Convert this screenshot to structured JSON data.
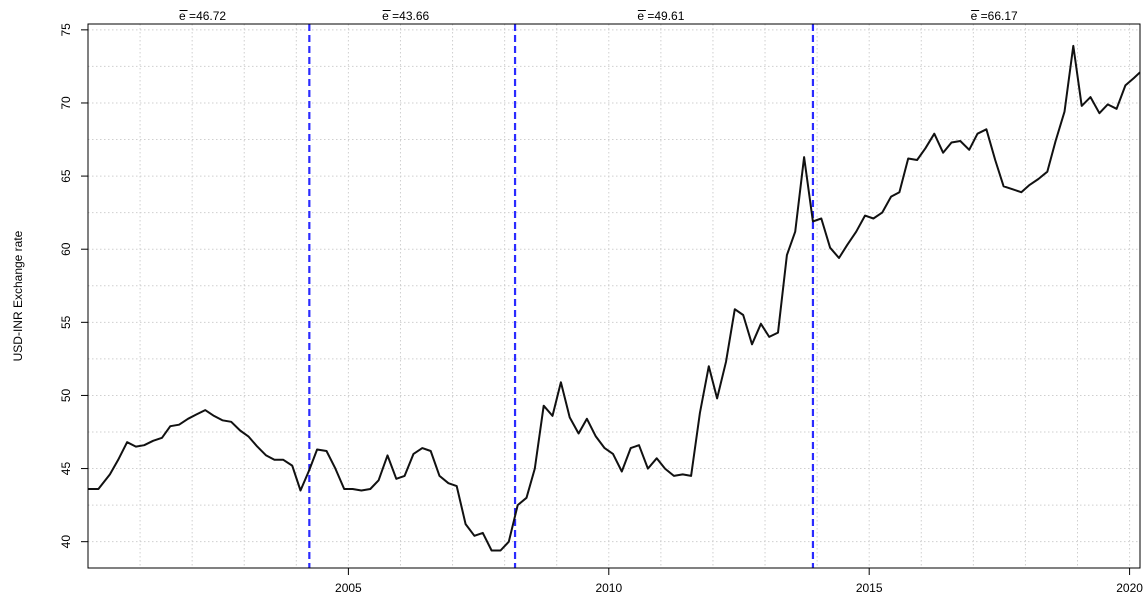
{
  "chart_data": {
    "type": "line",
    "title": "",
    "xlabel": "",
    "ylabel": "USD-INR Exchange rate",
    "xlim": [
      2000.0,
      2020.2
    ],
    "ylim": [
      38.2,
      75.4
    ],
    "xticks": [
      2005,
      2010,
      2015,
      2020
    ],
    "yticks": [
      40,
      45,
      50,
      55,
      60,
      65,
      70,
      75
    ],
    "grid": true,
    "break_lines": [
      2004.25,
      2008.2,
      2013.92
    ],
    "regime_means": [
      {
        "label": "e =46.72",
        "x": 2002.2
      },
      {
        "label": "e =43.66",
        "x": 2006.1
      },
      {
        "label": "e =49.61",
        "x": 2011.0
      },
      {
        "label": "e =66.17",
        "x": 2017.4
      }
    ],
    "line_color": "#111111",
    "break_color": "#2b2bff",
    "series": [
      {
        "x": [
          2000.0,
          2000.2,
          2000.42,
          2000.58,
          2000.75,
          2000.92,
          2001.08,
          2001.25,
          2001.42,
          2001.58,
          2001.75,
          2001.92,
          2002.08,
          2002.25,
          2002.42,
          2002.58,
          2002.75,
          2002.92,
          2003.08,
          2003.25,
          2003.42,
          2003.58,
          2003.75,
          2003.92,
          2004.08,
          2004.25,
          2004.4,
          2004.58,
          2004.75,
          2004.92,
          2005.08,
          2005.25,
          2005.42,
          2005.58,
          2005.75,
          2005.92,
          2006.08,
          2006.25,
          2006.42,
          2006.58,
          2006.75,
          2006.92,
          2007.08,
          2007.25,
          2007.42,
          2007.58,
          2007.75,
          2007.92,
          2008.08,
          2008.25,
          2008.42,
          2008.58,
          2008.75,
          2008.92,
          2009.08,
          2009.25,
          2009.42,
          2009.58,
          2009.75,
          2009.92,
          2010.08,
          2010.25,
          2010.42,
          2010.58,
          2010.75,
          2010.92,
          2011.08,
          2011.25,
          2011.42,
          2011.58,
          2011.75,
          2011.92,
          2012.08,
          2012.25,
          2012.42,
          2012.58,
          2012.75,
          2012.92,
          2013.08,
          2013.25,
          2013.42,
          2013.58,
          2013.75,
          2013.92,
          2014.08,
          2014.25,
          2014.42,
          2014.58,
          2014.75,
          2014.92,
          2015.08,
          2015.25,
          2015.42,
          2015.58,
          2015.75,
          2015.92,
          2016.08,
          2016.25,
          2016.42,
          2016.58,
          2016.75,
          2016.92,
          2017.08,
          2017.25,
          2017.42,
          2017.58,
          2017.75,
          2017.92,
          2018.08,
          2018.25,
          2018.42,
          2018.58,
          2018.75,
          2018.92,
          2019.08,
          2019.25,
          2019.42,
          2019.58,
          2019.75,
          2019.92,
          2020.08,
          2020.2
        ],
        "y": [
          43.6,
          43.6,
          44.6,
          45.6,
          46.8,
          46.5,
          46.6,
          46.9,
          47.1,
          47.9,
          48.0,
          48.4,
          48.7,
          49.0,
          48.6,
          48.3,
          48.2,
          47.6,
          47.2,
          46.5,
          45.9,
          45.6,
          45.6,
          45.2,
          43.5,
          44.9,
          46.3,
          46.2,
          45.0,
          43.6,
          43.6,
          43.5,
          43.6,
          44.2,
          45.9,
          44.3,
          44.5,
          46.0,
          46.4,
          46.2,
          44.5,
          44.0,
          43.8,
          41.2,
          40.4,
          40.6,
          39.4,
          39.4,
          40.0,
          42.5,
          43.0,
          45.0,
          49.3,
          48.6,
          50.9,
          48.5,
          47.4,
          48.4,
          47.2,
          46.4,
          46.0,
          44.8,
          46.4,
          46.6,
          45.0,
          45.7,
          45.0,
          44.5,
          44.6,
          44.5,
          48.8,
          52.0,
          49.8,
          52.3,
          55.9,
          55.5,
          53.5,
          54.9,
          54.0,
          54.3,
          59.6,
          61.2,
          66.3,
          61.9,
          62.1,
          60.1,
          59.4,
          60.3,
          61.2,
          62.3,
          62.1,
          62.5,
          63.6,
          63.9,
          66.2,
          66.1,
          66.9,
          67.9,
          66.6,
          67.3,
          67.4,
          66.8,
          67.9,
          68.2,
          66.1,
          64.3,
          64.1,
          63.9,
          64.4,
          64.8,
          65.3,
          67.4,
          69.4,
          73.9,
          69.8,
          70.4,
          69.3,
          69.9,
          69.6,
          71.2,
          71.7,
          72.1
        ]
      }
    ]
  }
}
